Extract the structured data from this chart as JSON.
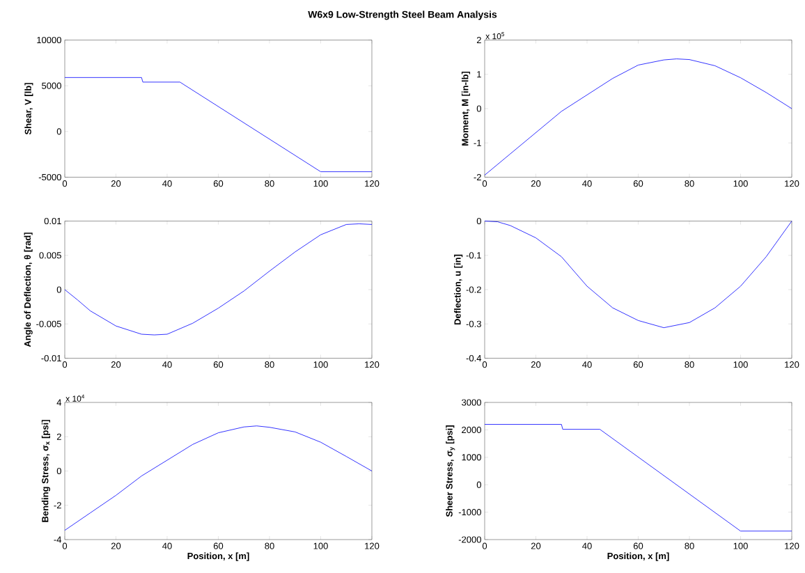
{
  "chart_data": [
    {
      "type": "line",
      "title": "W6x9 Low-Strength Steel Beam Analysis",
      "ylabel": "Shear, V [lb]",
      "xlim": [
        0,
        120
      ],
      "xticks": [
        0,
        20,
        40,
        60,
        80,
        100,
        120
      ],
      "ylim": [
        -5000,
        10000
      ],
      "yticks": [
        -5000,
        0,
        5000,
        10000
      ],
      "series": [
        {
          "color": "#0000ff",
          "x": [
            0,
            30,
            30.5,
            45,
            100,
            120
          ],
          "values": [
            5900,
            5900,
            5400,
            5400,
            -4400,
            -4400
          ]
        }
      ]
    },
    {
      "type": "line",
      "ylabel": "Moment, M [in-lb]",
      "annotations": [
        "x 10$^{5}$"
      ],
      "xlim": [
        0,
        120
      ],
      "xticks": [
        0,
        20,
        40,
        60,
        80,
        100,
        120
      ],
      "ylim": [
        -2,
        2
      ],
      "yticks": [
        -2,
        -1,
        0,
        1,
        2
      ],
      "series": [
        {
          "color": "#0000ff",
          "x": [
            0,
            10,
            20,
            30,
            40,
            50,
            60,
            70,
            75,
            80,
            90,
            100,
            110,
            120
          ],
          "values": [
            -1.94,
            -1.32,
            -0.7,
            -0.08,
            0.4,
            0.88,
            1.27,
            1.42,
            1.45,
            1.43,
            1.25,
            0.9,
            0.47,
            0
          ]
        }
      ]
    },
    {
      "type": "line",
      "ylabel": "Angle of Deflection,  θ [rad]",
      "xlim": [
        0,
        120
      ],
      "xticks": [
        0,
        20,
        40,
        60,
        80,
        100,
        120
      ],
      "ylim": [
        -0.01,
        0.01
      ],
      "yticks": [
        -0.01,
        -0.005,
        0,
        0.005,
        0.01
      ],
      "series": [
        {
          "color": "#0000ff",
          "x": [
            0,
            5,
            10,
            20,
            30,
            35,
            40,
            50,
            60,
            70,
            80,
            90,
            100,
            110,
            115,
            120
          ],
          "values": [
            0,
            -0.0015,
            -0.0031,
            -0.0053,
            -0.0065,
            -0.0066,
            -0.0065,
            -0.0049,
            -0.0027,
            -0.0002,
            0.0027,
            0.0055,
            0.008,
            0.0095,
            0.0096,
            0.0095
          ]
        }
      ]
    },
    {
      "type": "line",
      "ylabel": "Deflection, u [in]",
      "xlim": [
        0,
        120
      ],
      "xticks": [
        0,
        20,
        40,
        60,
        80,
        100,
        120
      ],
      "ylim": [
        -0.4,
        0
      ],
      "yticks": [
        -0.4,
        -0.3,
        -0.2,
        -0.1,
        0
      ],
      "series": [
        {
          "color": "#0000ff",
          "x": [
            0,
            5,
            10,
            20,
            30,
            40,
            50,
            60,
            70,
            80,
            90,
            100,
            110,
            120
          ],
          "values": [
            0,
            -0.002,
            -0.013,
            -0.049,
            -0.104,
            -0.19,
            -0.253,
            -0.29,
            -0.311,
            -0.296,
            -0.253,
            -0.19,
            -0.104,
            0
          ]
        }
      ]
    },
    {
      "type": "line",
      "xlabel": "Position, x [m]",
      "ylabel": "Bending Stress, σ$_{x}$ [psi]",
      "annotations": [
        "x 10$^{4}$"
      ],
      "xlim": [
        0,
        120
      ],
      "xticks": [
        0,
        20,
        40,
        60,
        80,
        100,
        120
      ],
      "ylim": [
        -4,
        4
      ],
      "yticks": [
        -4,
        -2,
        0,
        2,
        4
      ],
      "series": [
        {
          "color": "#0000ff",
          "x": [
            0,
            10,
            20,
            30,
            40,
            50,
            60,
            70,
            75,
            80,
            90,
            100,
            110,
            120
          ],
          "values": [
            -3.46,
            -2.44,
            -1.42,
            -0.29,
            0.63,
            1.55,
            2.23,
            2.57,
            2.63,
            2.55,
            2.28,
            1.68,
            0.85,
            0
          ]
        }
      ]
    },
    {
      "type": "line",
      "xlabel": "Position, x [m]",
      "ylabel": "Sheer Stress, σ$_{y}$ [psi]",
      "xlim": [
        0,
        120
      ],
      "xticks": [
        0,
        20,
        40,
        60,
        80,
        100,
        120
      ],
      "ylim": [
        -2000,
        3000
      ],
      "yticks": [
        -2000,
        -1000,
        0,
        1000,
        2000,
        3000
      ],
      "series": [
        {
          "color": "#0000ff",
          "x": [
            0,
            30,
            30.5,
            45,
            100,
            120
          ],
          "values": [
            2200,
            2200,
            2020,
            2020,
            -1690,
            -1690
          ]
        }
      ]
    }
  ]
}
